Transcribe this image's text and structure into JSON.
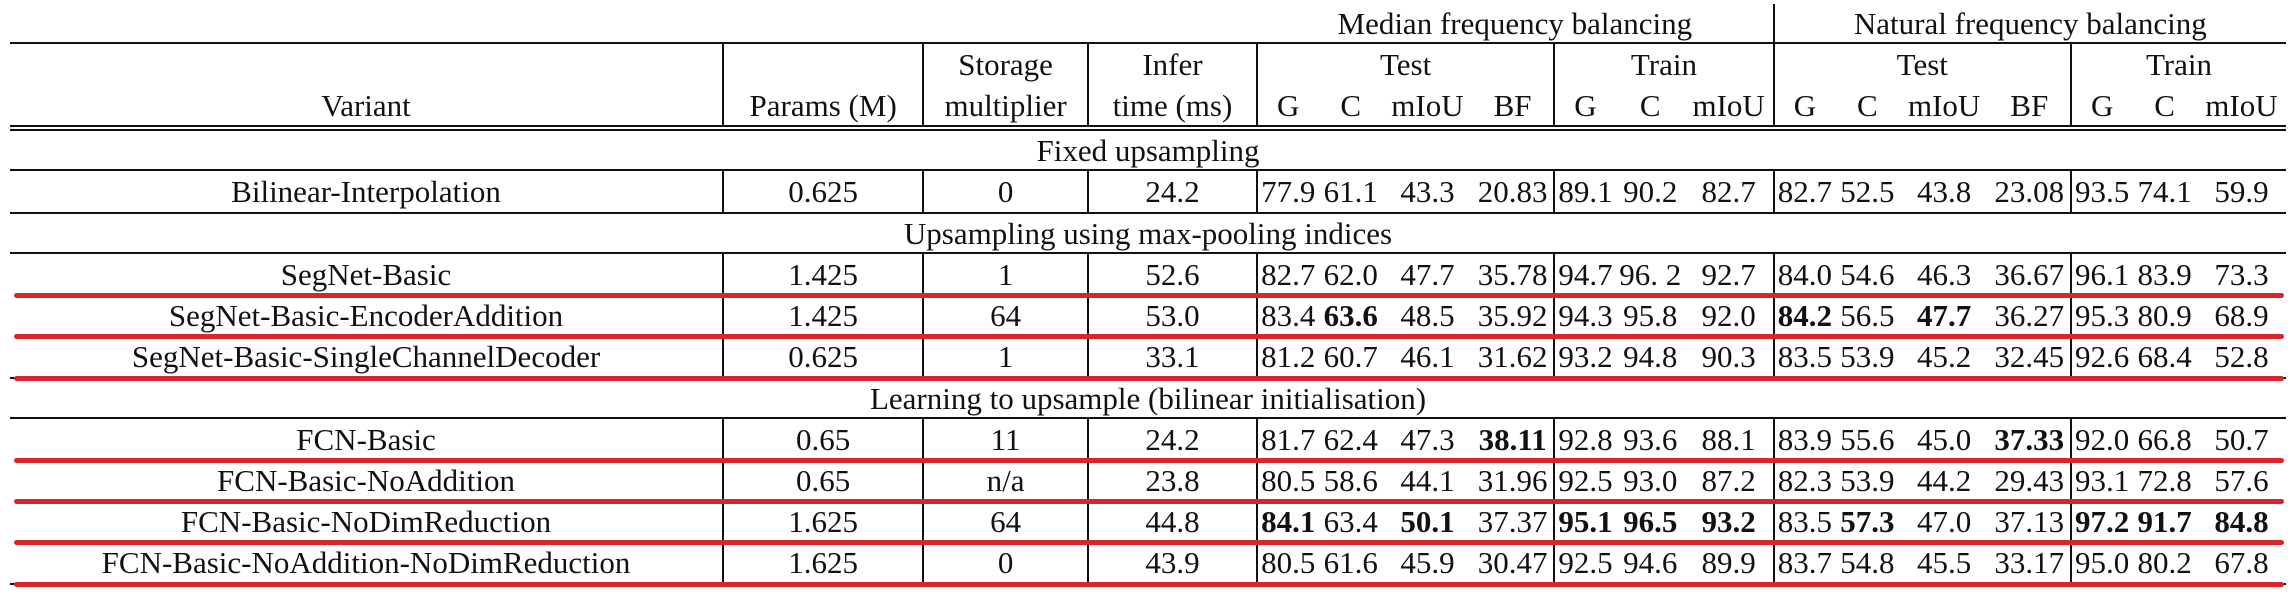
{
  "groups": {
    "median": "Median frequency balancing",
    "natural": "Natural frequency balancing"
  },
  "subheaders": {
    "storage": "Storage",
    "infer": "Infer",
    "test": "Test",
    "train": "Train"
  },
  "columns": {
    "variant": "Variant",
    "params": "Params (M)",
    "storage": "multiplier",
    "infer": "time (ms)",
    "G": "G",
    "C": "C",
    "mIoU": "mIoU",
    "BF": "BF"
  },
  "sections": [
    {
      "title": "Fixed upsampling",
      "rows": [
        {
          "variant": "Bilinear-Interpolation",
          "params": "0.625",
          "storage": "0",
          "infer": "24.2",
          "m": [
            "77.9",
            "61.1",
            "43.3",
            "20.83",
            "89.1",
            "90.2",
            "82.7"
          ],
          "n": [
            "82.7",
            "52.5",
            "43.8",
            "23.08",
            "93.5",
            "74.1",
            "59.9"
          ],
          "bold_m": [],
          "bold_n": []
        }
      ]
    },
    {
      "title": "Upsampling using max-pooling indices",
      "rows": [
        {
          "variant": "SegNet-Basic",
          "params": "1.425",
          "storage": "1",
          "infer": "52.6",
          "m": [
            "82.7",
            "62.0",
            "47.7",
            "35.78",
            "94.7",
            "96. 2",
            "92.7"
          ],
          "n": [
            "84.0",
            "54.6",
            "46.3",
            "36.67",
            "96.1",
            "83.9",
            "73.3"
          ],
          "bold_m": [],
          "bold_n": []
        },
        {
          "variant": "SegNet-Basic-EncoderAddition",
          "params": "1.425",
          "storage": "64",
          "infer": "53.0",
          "m": [
            "83.4",
            "63.6",
            "48.5",
            "35.92",
            "94.3",
            "95.8",
            "92.0"
          ],
          "n": [
            "84.2",
            "56.5",
            "47.7",
            "36.27",
            "95.3",
            "80.9",
            "68.9"
          ],
          "bold_m": [
            1
          ],
          "bold_n": [
            0,
            2
          ]
        },
        {
          "variant": "SegNet-Basic-SingleChannelDecoder",
          "params": "0.625",
          "storage": "1",
          "infer": "33.1",
          "m": [
            "81.2",
            "60.7",
            "46.1",
            "31.62",
            "93.2",
            "94.8",
            "90.3"
          ],
          "n": [
            "83.5",
            "53.9",
            "45.2",
            "32.45",
            "92.6",
            "68.4",
            "52.8"
          ],
          "bold_m": [],
          "bold_n": []
        }
      ]
    },
    {
      "title": "Learning to upsample (bilinear initialisation)",
      "rows": [
        {
          "variant": "FCN-Basic",
          "params": "0.65",
          "storage": "11",
          "infer": "24.2",
          "m": [
            "81.7",
            "62.4",
            "47.3",
            "38.11",
            "92.8",
            "93.6",
            "88.1"
          ],
          "n": [
            "83.9",
            "55.6",
            "45.0",
            "37.33",
            "92.0",
            "66.8",
            "50.7"
          ],
          "bold_m": [
            3
          ],
          "bold_n": [
            3
          ]
        },
        {
          "variant": "FCN-Basic-NoAddition",
          "params": "0.65",
          "storage": "n/a",
          "infer": "23.8",
          "m": [
            "80.5",
            "58.6",
            "44.1",
            "31.96",
            "92.5",
            "93.0",
            "87.2"
          ],
          "n": [
            "82.3",
            "53.9",
            "44.2",
            "29.43",
            "93.1",
            "72.8",
            "57.6"
          ],
          "bold_m": [],
          "bold_n": []
        },
        {
          "variant": "FCN-Basic-NoDimReduction",
          "params": "1.625",
          "storage": "64",
          "infer": "44.8",
          "m": [
            "84.1",
            "63.4",
            "50.1",
            "37.37",
            "95.1",
            "96.5",
            "93.2"
          ],
          "n": [
            "83.5",
            "57.3",
            "47.0",
            "37.13",
            "97.2",
            "91.7",
            "84.8"
          ],
          "bold_m": [
            0,
            2,
            4,
            5,
            6
          ],
          "bold_n": [
            1,
            4,
            5,
            6
          ]
        },
        {
          "variant": "FCN-Basic-NoAddition-NoDimReduction",
          "params": "1.625",
          "storage": "0",
          "infer": "43.9",
          "m": [
            "80.5",
            "61.6",
            "45.9",
            "30.47",
            "92.5",
            "94.6",
            "89.9"
          ],
          "n": [
            "83.7",
            "54.8",
            "45.5",
            "33.17",
            "95.0",
            "80.2",
            "67.8"
          ],
          "bold_m": [],
          "bold_n": []
        }
      ]
    }
  ],
  "highlight": {
    "color": "#d8262b"
  }
}
